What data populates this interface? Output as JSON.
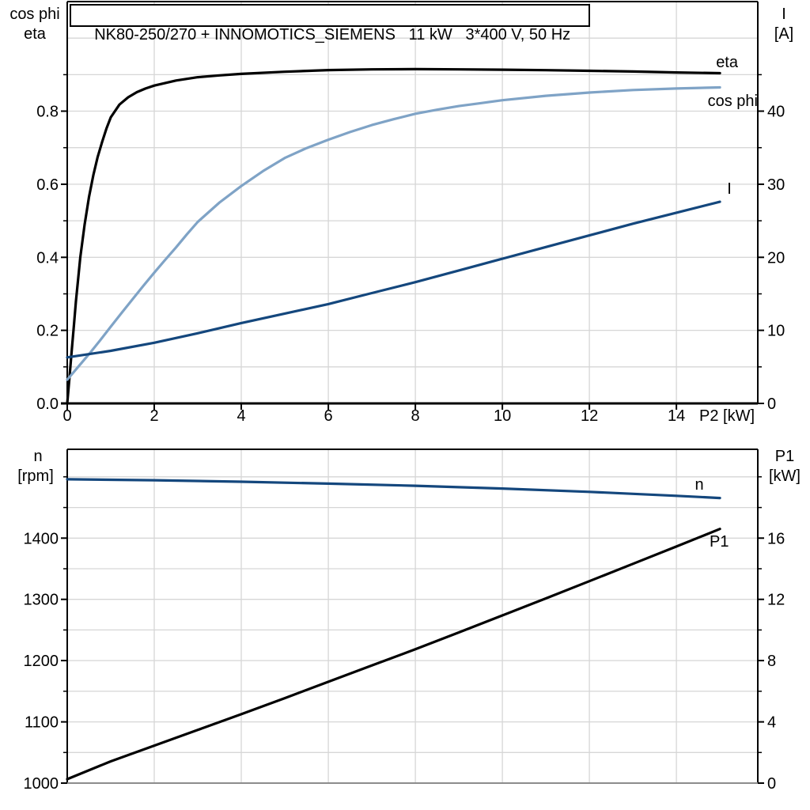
{
  "title": "NK80-250/270 + INNOMOTICS_SIEMENS   11 kW   3*400 V, 50 Hz",
  "colors": {
    "eta": "#000000",
    "cos_phi": "#7fa3c6",
    "current": "#14477d",
    "speed": "#14477d",
    "p1": "#000000",
    "grid": "#d6d6d6",
    "axis": "#000000",
    "axis_gray": "#8c8c8c",
    "text": "#000000"
  },
  "chart_data": [
    {
      "type": "line",
      "title": "NK80-250/270 + INNOMOTICS_SIEMENS   11 kW   3*400 V, 50 Hz",
      "x_axis": {
        "label": "P2 [kW]",
        "min": 0,
        "max": 15.87,
        "ticks": [
          [
            0,
            "0"
          ],
          [
            2,
            "2"
          ],
          [
            4,
            "4"
          ],
          [
            6,
            "6"
          ],
          [
            8,
            "8"
          ],
          [
            10,
            "10"
          ],
          [
            12,
            "12"
          ],
          [
            14,
            "14"
          ]
        ],
        "gridlines": [
          2,
          4,
          6,
          8,
          10,
          12,
          14
        ]
      },
      "y_left": {
        "title_lines": [
          "cos phi",
          "eta"
        ],
        "min": 0,
        "max": 1.1,
        "ticks": [
          [
            0,
            "0.0"
          ],
          [
            0.2,
            "0.2"
          ],
          [
            0.4,
            "0.4"
          ],
          [
            0.6,
            "0.6"
          ],
          [
            0.8,
            "0.8"
          ]
        ],
        "minor_ticks": [
          0.1,
          0.3,
          0.5,
          0.7,
          0.9
        ],
        "gridlines": [
          0.1,
          0.2,
          0.3,
          0.4,
          0.5,
          0.6,
          0.7,
          0.8,
          0.9,
          1.0
        ]
      },
      "y_right": {
        "title_lines": [
          "I",
          "[A]"
        ],
        "min": 0,
        "max": 55,
        "ticks": [
          [
            0,
            "0"
          ],
          [
            10,
            "10"
          ],
          [
            20,
            "20"
          ],
          [
            30,
            "30"
          ],
          [
            40,
            "40"
          ]
        ],
        "minor_ticks": [
          5,
          15,
          25,
          35,
          45
        ]
      },
      "series": [
        {
          "name": "eta",
          "label": "eta",
          "axis": "left",
          "color_key": "eta",
          "x": [
            0,
            0.05,
            0.1,
            0.15,
            0.2,
            0.3,
            0.4,
            0.5,
            0.6,
            0.7,
            0.8,
            0.9,
            1.0,
            1.2,
            1.4,
            1.6,
            1.8,
            2.0,
            2.5,
            3.0,
            3.5,
            4.0,
            5.0,
            6.0,
            7.0,
            8.0,
            9.0,
            10.0,
            11.0,
            12.0,
            13.0,
            14.0,
            15.0
          ],
          "y": [
            0,
            0.07,
            0.14,
            0.21,
            0.28,
            0.4,
            0.49,
            0.565,
            0.625,
            0.675,
            0.715,
            0.752,
            0.783,
            0.818,
            0.838,
            0.852,
            0.862,
            0.87,
            0.884,
            0.893,
            0.898,
            0.902,
            0.908,
            0.9125,
            0.9145,
            0.915,
            0.9145,
            0.9135,
            0.9122,
            0.9105,
            0.9085,
            0.906,
            0.904
          ]
        },
        {
          "name": "cos phi",
          "label": "cos phi",
          "axis": "left",
          "color_key": "cos_phi",
          "x": [
            0,
            0.25,
            0.5,
            0.75,
            1.0,
            1.25,
            1.5,
            1.75,
            2.0,
            2.25,
            2.5,
            2.75,
            3.0,
            3.5,
            4.0,
            4.5,
            5.0,
            5.5,
            6.0,
            6.5,
            7.0,
            7.5,
            8.0,
            8.5,
            9.0,
            9.5,
            10.0,
            11.0,
            12.0,
            13.0,
            14.0,
            15.0
          ],
          "y": [
            0.065,
            0.1,
            0.135,
            0.172,
            0.21,
            0.248,
            0.285,
            0.322,
            0.358,
            0.393,
            0.427,
            0.463,
            0.497,
            0.55,
            0.595,
            0.636,
            0.672,
            0.699,
            0.722,
            0.743,
            0.762,
            0.778,
            0.793,
            0.804,
            0.814,
            0.822,
            0.83,
            0.842,
            0.851,
            0.858,
            0.862,
            0.865
          ]
        },
        {
          "name": "I",
          "label": "I",
          "axis": "right",
          "color_key": "current",
          "x": [
            0,
            1,
            2,
            3,
            4,
            5,
            6,
            7,
            8,
            9,
            10,
            11,
            12,
            13,
            14,
            15
          ],
          "y": [
            6.3,
            7.2,
            8.3,
            9.6,
            11.0,
            12.3,
            13.6,
            15.1,
            16.6,
            18.2,
            19.8,
            21.4,
            23.0,
            24.6,
            26.1,
            27.6
          ]
        }
      ]
    },
    {
      "type": "line",
      "x_axis": {
        "min": 0,
        "max": 15.87,
        "ticks": [],
        "gridlines": [
          2,
          4,
          6,
          8,
          10,
          12,
          14
        ]
      },
      "y_left": {
        "title_lines": [
          "n",
          "[rpm]"
        ],
        "min": 1000,
        "max": 1545,
        "ticks": [
          [
            1000,
            "1000"
          ],
          [
            1100,
            "1100"
          ],
          [
            1200,
            "1200"
          ],
          [
            1300,
            "1300"
          ],
          [
            1400,
            "1400"
          ]
        ],
        "minor_ticks": [
          1050,
          1150,
          1250,
          1350,
          1450,
          1500
        ],
        "gridlines": [
          1050,
          1100,
          1150,
          1200,
          1250,
          1300,
          1350,
          1400,
          1450,
          1500
        ]
      },
      "y_right": {
        "title_lines": [
          "P1",
          "[kW]"
        ],
        "min": 0,
        "max": 21.8,
        "ticks": [
          [
            0,
            "0"
          ],
          [
            4,
            "4"
          ],
          [
            8,
            "8"
          ],
          [
            12,
            "12"
          ],
          [
            16,
            "16"
          ]
        ],
        "minor_ticks": [
          2,
          6,
          10,
          14,
          18,
          20
        ]
      },
      "series": [
        {
          "name": "n",
          "label": "n",
          "axis": "left",
          "color_key": "speed",
          "x": [
            0,
            2,
            4,
            6,
            8,
            10,
            12,
            14,
            15
          ],
          "y": [
            1496,
            1494.5,
            1492,
            1489,
            1485.5,
            1481,
            1475.5,
            1469,
            1465.5
          ]
        },
        {
          "name": "P1",
          "label": "P1",
          "axis": "right",
          "color_key": "p1",
          "x": [
            0,
            1,
            2,
            3,
            4,
            5,
            6,
            7,
            8,
            9,
            10,
            11,
            12,
            13,
            14,
            15
          ],
          "y": [
            0.26,
            1.42,
            2.45,
            3.47,
            4.5,
            5.55,
            6.62,
            7.68,
            8.74,
            9.84,
            10.95,
            12.06,
            13.19,
            14.32,
            15.45,
            16.6
          ]
        }
      ]
    }
  ]
}
